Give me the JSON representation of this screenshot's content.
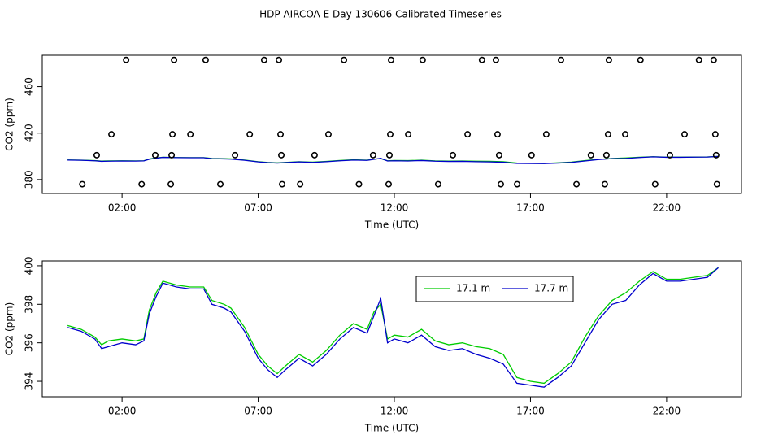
{
  "title": "HDP AIRCOA E  Day 130606  Calibrated Timeseries",
  "chart_data": [
    {
      "type": "scatter",
      "ylabel": "CO2 (ppm)",
      "xlabel": "Time (UTC)",
      "color": "#000000",
      "x": [
        2.15,
        3.91,
        5.07,
        7.22,
        7.76,
        10.15,
        11.88,
        13.04,
        15.22,
        15.73,
        18.12,
        19.88,
        21.04,
        23.19,
        23.73,
        1.61,
        3.85,
        4.51,
        6.69,
        7.82,
        9.58,
        11.85,
        12.51,
        14.69,
        15.79,
        17.58,
        19.85,
        20.48,
        22.66,
        23.79,
        1.07,
        3.22,
        3.82,
        6.15,
        7.85,
        9.07,
        11.22,
        11.82,
        14.15,
        15.85,
        17.04,
        19.22,
        19.79,
        22.12,
        23.82,
        0.54,
        2.72,
        3.79,
        5.61,
        7.88,
        8.54,
        10.7,
        11.79,
        13.61,
        15.91,
        16.51,
        18.69,
        19.73,
        21.58,
        23.85
      ],
      "values": [
        483,
        483,
        483,
        483,
        483,
        483,
        483,
        483,
        483,
        483,
        483,
        483,
        483,
        483,
        483,
        419,
        419,
        419,
        419,
        419,
        419,
        419,
        419,
        419,
        419,
        419,
        419,
        419,
        419,
        419,
        401,
        401,
        401,
        401,
        401,
        401,
        401,
        401,
        401,
        401,
        401,
        401,
        401,
        401,
        401,
        376,
        376,
        376,
        376,
        376,
        376,
        376,
        376,
        376,
        376,
        376,
        376,
        376,
        376,
        376
      ],
      "xlim": [
        -0.93,
        24.75
      ],
      "ylim": [
        368,
        487
      ],
      "xticks": [
        {
          "value": 2,
          "label": "02:00"
        },
        {
          "value": 7,
          "label": "07:00"
        },
        {
          "value": 12,
          "label": "12:00"
        },
        {
          "value": 17,
          "label": "17:00"
        },
        {
          "value": 22,
          "label": "22:00"
        }
      ],
      "yticks": [
        380,
        420,
        460
      ]
    },
    {
      "type": "line",
      "ylabel": "CO2 (ppm)",
      "xlabel": "Time (UTC)",
      "legend": "top",
      "x": [
        0,
        0.5,
        1,
        1.25,
        1.5,
        2,
        2.5,
        2.8,
        3,
        3.25,
        3.5,
        4,
        4.5,
        5,
        5.3,
        5.75,
        6,
        6.5,
        7,
        7.35,
        7.7,
        8,
        8.5,
        9,
        9.5,
        10,
        10.5,
        11,
        11.25,
        11.5,
        11.75,
        12,
        12.5,
        13,
        13.5,
        14,
        14.5,
        15,
        15.5,
        16,
        16.5,
        17,
        17.5,
        18,
        18.5,
        19,
        19.5,
        20,
        20.5,
        21,
        21.5,
        22,
        22.5,
        23,
        23.5,
        23.9
      ],
      "series": [
        {
          "name": "17.1 m",
          "color": "#00cc00",
          "values": [
            396.9,
            396.7,
            396.3,
            395.9,
            396.1,
            396.2,
            396.1,
            396.2,
            397.7,
            398.6,
            399.2,
            399.0,
            398.9,
            398.9,
            398.2,
            398.0,
            397.8,
            396.8,
            395.4,
            394.8,
            394.4,
            394.8,
            395.4,
            395.0,
            395.6,
            396.4,
            397.0,
            396.7,
            397.6,
            398.0,
            396.2,
            396.4,
            396.3,
            396.7,
            396.1,
            395.9,
            396.0,
            395.8,
            395.7,
            395.4,
            394.2,
            394.0,
            393.9,
            394.4,
            395.0,
            396.3,
            397.4,
            398.2,
            398.6,
            399.2,
            399.7,
            399.3,
            399.3,
            399.4,
            399.5,
            399.9
          ]
        },
        {
          "name": "17.7 m",
          "color": "#0000cc",
          "values": [
            396.8,
            396.6,
            396.2,
            395.7,
            395.8,
            396.0,
            395.9,
            396.1,
            397.5,
            398.4,
            399.1,
            398.9,
            398.8,
            398.8,
            398.0,
            397.8,
            397.6,
            396.6,
            395.2,
            394.6,
            394.2,
            394.6,
            395.2,
            394.8,
            395.4,
            396.2,
            396.8,
            396.5,
            397.4,
            398.3,
            396.0,
            396.2,
            396.0,
            396.4,
            395.8,
            395.6,
            395.7,
            395.4,
            395.2,
            394.9,
            393.9,
            393.8,
            393.7,
            394.2,
            394.8,
            396.0,
            397.2,
            398.0,
            398.2,
            399.0,
            399.6,
            399.2,
            399.2,
            399.3,
            399.4,
            399.9
          ]
        }
      ],
      "xlim": [
        -0.93,
        24.75
      ],
      "ylim": [
        393.2,
        400.25
      ],
      "xticks": [
        {
          "value": 2,
          "label": "02:00"
        },
        {
          "value": 7,
          "label": "07:00"
        },
        {
          "value": 12,
          "label": "12:00"
        },
        {
          "value": 17,
          "label": "17:00"
        },
        {
          "value": 22,
          "label": "22:00"
        }
      ],
      "yticks": [
        394,
        396,
        398,
        400
      ]
    }
  ]
}
